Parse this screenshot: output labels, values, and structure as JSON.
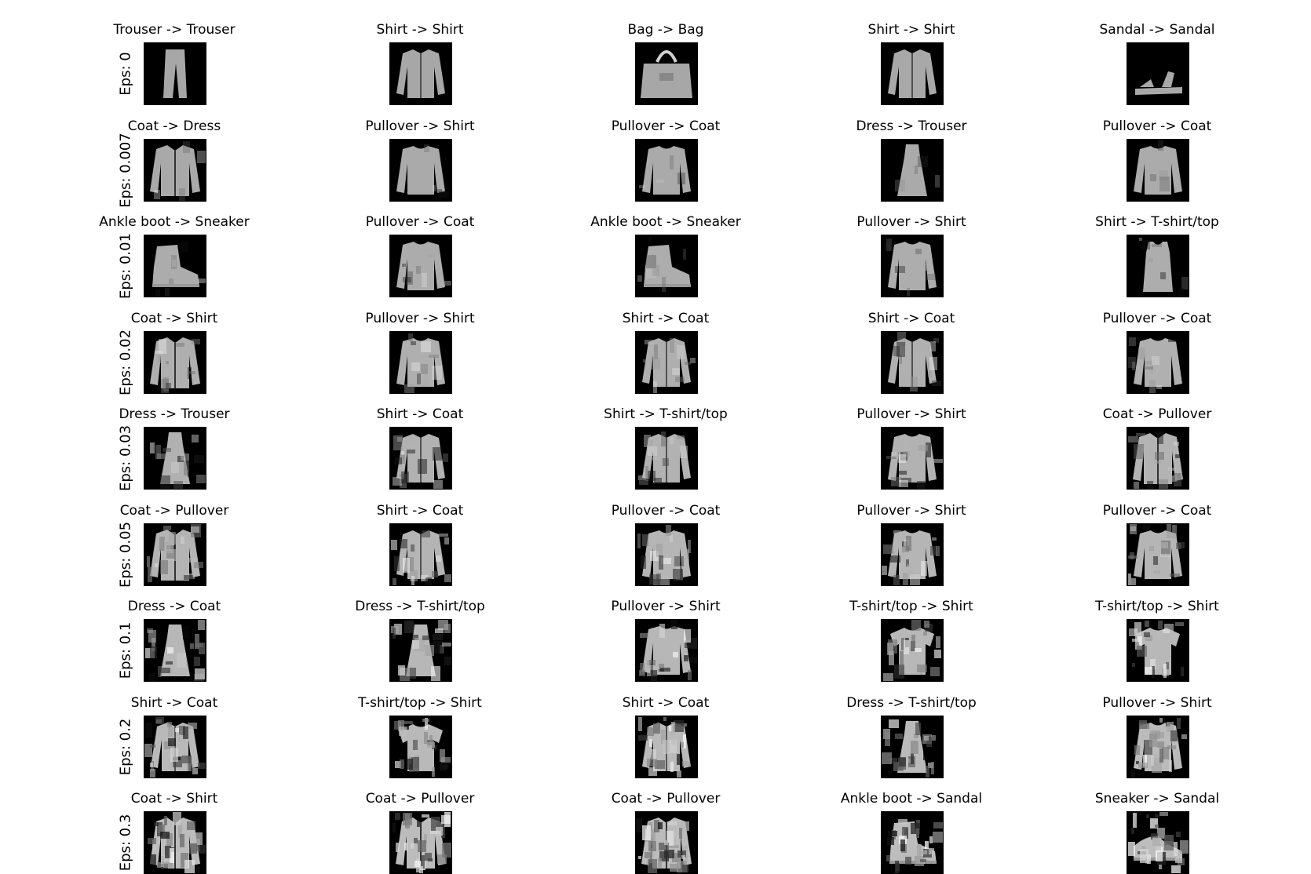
{
  "rows": [
    {
      "label": "Eps: 0",
      "cells": [
        {
          "title": "Trouser -> Trouser",
          "icon": "trouser-icon"
        },
        {
          "title": "Shirt -> Shirt",
          "icon": "shirt-icon"
        },
        {
          "title": "Bag -> Bag",
          "icon": "bag-icon"
        },
        {
          "title": "Shirt -> Shirt",
          "icon": "shirt-icon"
        },
        {
          "title": "Sandal -> Sandal",
          "icon": "sandal-icon"
        }
      ]
    },
    {
      "label": "Eps: 0.007",
      "cells": [
        {
          "title": "Coat -> Dress",
          "icon": "coat-icon"
        },
        {
          "title": "Pullover -> Shirt",
          "icon": "pullover-icon"
        },
        {
          "title": "Pullover -> Coat",
          "icon": "pullover-icon"
        },
        {
          "title": "Dress -> Trouser",
          "icon": "dress-icon"
        },
        {
          "title": "Pullover -> Coat",
          "icon": "pullover-icon"
        }
      ]
    },
    {
      "label": "Eps: 0.01",
      "cells": [
        {
          "title": "Ankle boot -> Sneaker",
          "icon": "ankle-boot-icon"
        },
        {
          "title": "Pullover -> Coat",
          "icon": "pullover-icon"
        },
        {
          "title": "Ankle boot -> Sneaker",
          "icon": "ankle-boot-icon"
        },
        {
          "title": "Pullover -> Shirt",
          "icon": "pullover-icon"
        },
        {
          "title": "Shirt -> T-shirt/top",
          "icon": "tank-top-icon"
        }
      ]
    },
    {
      "label": "Eps: 0.02",
      "cells": [
        {
          "title": "Coat -> Shirt",
          "icon": "coat-icon"
        },
        {
          "title": "Pullover -> Shirt",
          "icon": "pullover-icon"
        },
        {
          "title": "Shirt -> Coat",
          "icon": "shirt-icon"
        },
        {
          "title": "Shirt -> Coat",
          "icon": "shirt-icon"
        },
        {
          "title": "Pullover -> Coat",
          "icon": "pullover-icon"
        }
      ]
    },
    {
      "label": "Eps: 0.03",
      "cells": [
        {
          "title": "Dress -> Trouser",
          "icon": "dress-icon"
        },
        {
          "title": "Shirt -> Coat",
          "icon": "shirt-icon"
        },
        {
          "title": "Shirt -> T-shirt/top",
          "icon": "shirt-icon"
        },
        {
          "title": "Pullover -> Shirt",
          "icon": "pullover-icon"
        },
        {
          "title": "Coat -> Pullover",
          "icon": "coat-icon"
        }
      ]
    },
    {
      "label": "Eps: 0.05",
      "cells": [
        {
          "title": "Coat -> Pullover",
          "icon": "coat-icon"
        },
        {
          "title": "Shirt -> Coat",
          "icon": "shirt-icon"
        },
        {
          "title": "Pullover -> Coat",
          "icon": "pullover-icon"
        },
        {
          "title": "Pullover -> Shirt",
          "icon": "pullover-icon"
        },
        {
          "title": "Pullover -> Coat",
          "icon": "pullover-icon"
        }
      ]
    },
    {
      "label": "Eps: 0.1",
      "cells": [
        {
          "title": "Dress -> Coat",
          "icon": "dress-icon"
        },
        {
          "title": "Dress -> T-shirt/top",
          "icon": "dress-icon"
        },
        {
          "title": "Pullover -> Shirt",
          "icon": "pullover-icon"
        },
        {
          "title": "T-shirt/top -> Shirt",
          "icon": "t-shirt-icon"
        },
        {
          "title": "T-shirt/top -> Shirt",
          "icon": "t-shirt-icon"
        }
      ]
    },
    {
      "label": "Eps: 0.2",
      "cells": [
        {
          "title": "Shirt -> Coat",
          "icon": "shirt-icon"
        },
        {
          "title": "T-shirt/top -> Shirt",
          "icon": "t-shirt-icon"
        },
        {
          "title": "Shirt -> Coat",
          "icon": "shirt-icon"
        },
        {
          "title": "Dress -> T-shirt/top",
          "icon": "dress-icon"
        },
        {
          "title": "Pullover -> Shirt",
          "icon": "pullover-icon"
        }
      ]
    },
    {
      "label": "Eps: 0.3",
      "cells": [
        {
          "title": "Coat -> Shirt",
          "icon": "coat-icon"
        },
        {
          "title": "Coat -> Pullover",
          "icon": "coat-icon"
        },
        {
          "title": "Coat -> Pullover",
          "icon": "coat-icon"
        },
        {
          "title": "Ankle boot -> Sandal",
          "icon": "ankle-boot-icon"
        },
        {
          "title": "Sneaker -> Sandal",
          "icon": "sneaker-icon"
        }
      ]
    }
  ],
  "colors": {
    "background": "#ffffff",
    "thumb_background": "#000000",
    "text": "#000000"
  }
}
